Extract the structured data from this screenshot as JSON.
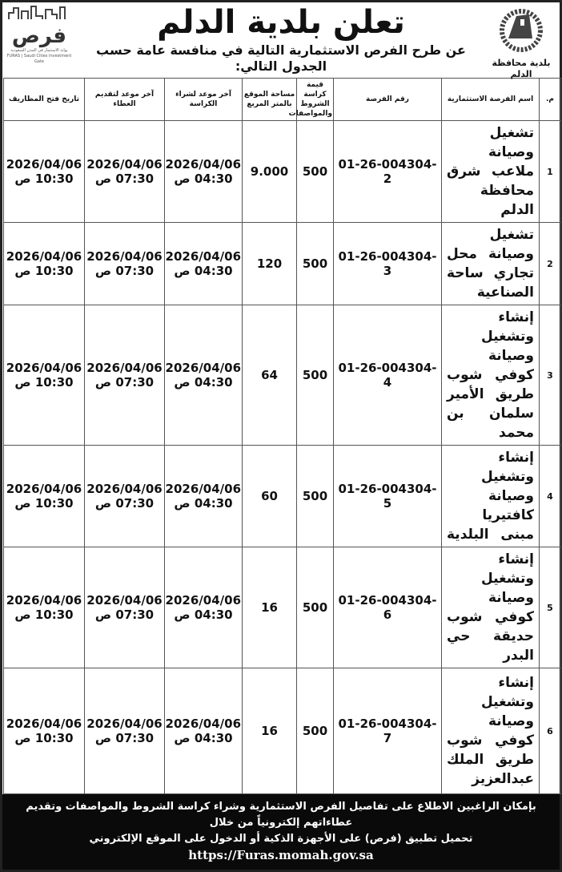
{
  "header": {
    "title": "تعلن بلدية الدلم",
    "subtitle": "عن طرح الفرص الاستثمارية التالية في منافسة عامة حسب الجدول التالي:",
    "right_logo_text": "بلدية محافظة الدلم",
    "left_logo": {
      "word": "فرص",
      "tagline": "بوابة الاستثمار في المدن السعودية",
      "tagline_en": "FURAS | Saudi Cities Investment Gate"
    }
  },
  "table": {
    "columns": [
      "م.",
      "اسم الفرصة الاستثمارية",
      "رقم الفرصة",
      "قيمة كراسة الشروط والمواصفات",
      "مساحة الموقع بالمتر المربع",
      "آخر موعد لشراء الكراسة",
      "آخر موعد لتقديم العطاء",
      "تاريخ فتح المظاريف"
    ],
    "rows": [
      {
        "no": "1",
        "name": "تشغيل وصيانة ملاعب شرق محافظة الدلم",
        "id": "01-26-004304-2",
        "price": "500",
        "area": "9.000",
        "booklet_date": "2026/04/06",
        "booklet_time": "04:30 ص",
        "submit_date": "2026/04/06",
        "submit_time": "07:30 ص",
        "open_date": "2026/04/06",
        "open_time": "10:30 ص"
      },
      {
        "no": "2",
        "name": "تشغيل وصيانة محل تجاري ساحة الصناعية",
        "id": "01-26-004304-3",
        "price": "500",
        "area": "120",
        "booklet_date": "2026/04/06",
        "booklet_time": "04:30 ص",
        "submit_date": "2026/04/06",
        "submit_time": "07:30 ص",
        "open_date": "2026/04/06",
        "open_time": "10:30 ص"
      },
      {
        "no": "3",
        "name": "إنشاء وتشغيل وصيانة كوفي شوب طريق الأمير سلمان بن محمد",
        "id": "01-26-004304-4",
        "price": "500",
        "area": "64",
        "booklet_date": "2026/04/06",
        "booklet_time": "04:30 ص",
        "submit_date": "2026/04/06",
        "submit_time": "07:30 ص",
        "open_date": "2026/04/06",
        "open_time": "10:30 ص"
      },
      {
        "no": "4",
        "name": "إنشاء وتشغيل وصيانة كافتيريا مبنى البلدية",
        "id": "01-26-004304-5",
        "price": "500",
        "area": "60",
        "booklet_date": "2026/04/06",
        "booklet_time": "04:30 ص",
        "submit_date": "2026/04/06",
        "submit_time": "07:30 ص",
        "open_date": "2026/04/06",
        "open_time": "10:30 ص"
      },
      {
        "no": "5",
        "name": "إنشاء وتشغيل وصيانة كوفي شوب حديقة حي البدر",
        "id": "01-26-004304-6",
        "price": "500",
        "area": "16",
        "booklet_date": "2026/04/06",
        "booklet_time": "04:30 ص",
        "submit_date": "2026/04/06",
        "submit_time": "07:30 ص",
        "open_date": "2026/04/06",
        "open_time": "10:30 ص"
      },
      {
        "no": "6",
        "name": "إنشاء وتشغيل وصيانة كوفي شوب طريق الملك عبدالعزيز",
        "id": "01-26-004304-7",
        "price": "500",
        "area": "16",
        "booklet_date": "2026/04/06",
        "booklet_time": "04:30 ص",
        "submit_date": "2026/04/06",
        "submit_time": "07:30 ص",
        "open_date": "2026/04/06",
        "open_time": "10:30 ص"
      }
    ]
  },
  "footer": {
    "line1": "بإمكان الراغبين الاطلاع على تفاصيل الفرص الاستثمارية وشراء كراسة الشروط والمواصفات وتقديم عطاءاتهم إلكترونياً من خلال",
    "line2": "تحميل تطبيق (فرص) على الأجهزة الذكية أو الدخول على الموقع الإلكتروني",
    "url": "https://Furas.momah.gov.sa"
  }
}
